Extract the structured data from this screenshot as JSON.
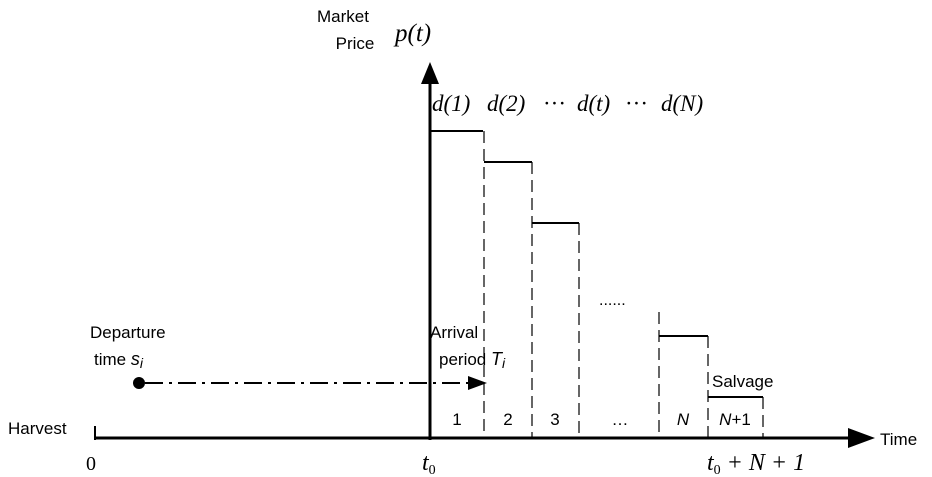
{
  "axes": {
    "y_label_line1": "Market",
    "y_label_line2": "Price",
    "y_symbol": "p(t)",
    "x_label": "Time",
    "origin_label": "0",
    "harvest_label": "Harvest",
    "t0_label": "t",
    "t0_sub": "0",
    "end_label_t": "t",
    "end_label_sub": "0",
    "end_label_rest": " + N + 1"
  },
  "demand_labels": {
    "d1": "d(1)",
    "d2": "d(2)",
    "dots1": "···",
    "dt": "d(t)",
    "dots2": "···",
    "dN": "d(N)"
  },
  "periods": {
    "p1": "1",
    "p2": "2",
    "p3": "3",
    "dots": "…",
    "pN": "N",
    "pN1_prefix": "N",
    "pN1_suffix": "+1"
  },
  "annotations": {
    "departure_line1": "Departure",
    "departure_line2": "time ",
    "departure_symbol": "s",
    "departure_sub": "i",
    "arrival_line1": "Arrival",
    "arrival_line2": "period ",
    "arrival_symbol": "T",
    "arrival_sub": "i",
    "middle_dots": "......",
    "salvage": "Salvage"
  },
  "colors": {
    "stroke": "#000000",
    "text": "#000000"
  }
}
